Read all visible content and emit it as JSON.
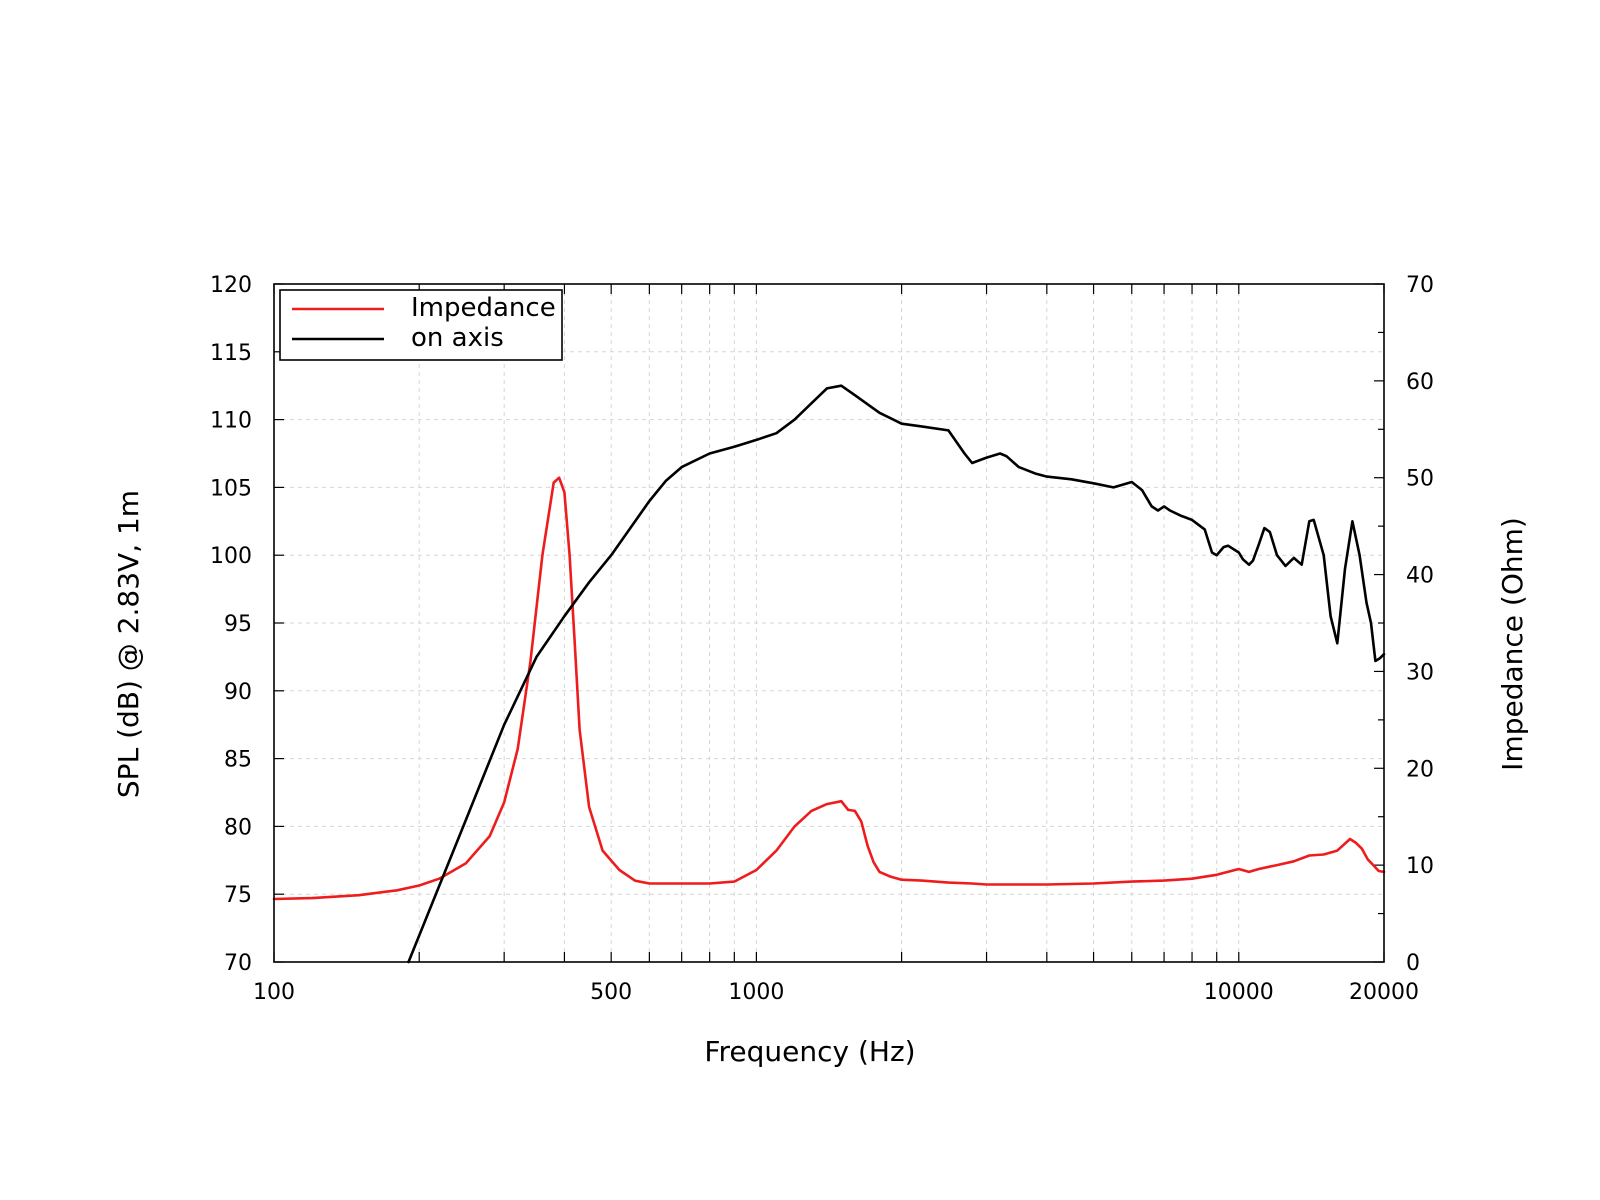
{
  "chart_data": {
    "type": "line",
    "title": "",
    "xlabel": "Frequency (Hz)",
    "ylabel": "SPL (dB) @ 2.83V, 1m",
    "y2label": "Impedance (Ohm)",
    "xscale": "log",
    "xlim": [
      100,
      20000
    ],
    "ylim": [
      70,
      120
    ],
    "y2lim": [
      0,
      70
    ],
    "grid": true,
    "legend_position": "top-left",
    "x_tick_labels": [
      {
        "value": 100,
        "label": "100"
      },
      {
        "value": 500,
        "label": "500"
      },
      {
        "value": 1000,
        "label": "1000"
      },
      {
        "value": 10000,
        "label": "10000"
      },
      {
        "value": 20000,
        "label": "20000"
      }
    ],
    "x_minor_ticks": [
      200,
      300,
      400,
      600,
      700,
      800,
      900,
      2000,
      3000,
      4000,
      5000,
      6000,
      7000,
      8000,
      9000
    ],
    "y_ticks": [
      70,
      75,
      80,
      85,
      90,
      95,
      100,
      105,
      110,
      115,
      120
    ],
    "y2_ticks": [
      0,
      10,
      20,
      30,
      40,
      50,
      60,
      70
    ],
    "series": [
      {
        "name": "Impedance",
        "axis": "right",
        "color": "#ee1c1c",
        "x": [
          100,
          120,
          150,
          180,
          200,
          220,
          250,
          280,
          300,
          320,
          340,
          360,
          380,
          390,
          400,
          410,
          420,
          430,
          450,
          480,
          520,
          560,
          600,
          650,
          700,
          800,
          900,
          1000,
          1100,
          1200,
          1300,
          1400,
          1500,
          1550,
          1600,
          1650,
          1700,
          1750,
          1800,
          1900,
          2000,
          2200,
          2500,
          2800,
          3000,
          3500,
          4000,
          5000,
          6000,
          7000,
          8000,
          9000,
          10000,
          10500,
          11000,
          12000,
          13000,
          14000,
          15000,
          16000,
          17000,
          17500,
          18000,
          18500,
          19000,
          19500,
          20000
        ],
        "values": [
          6.5,
          6.6,
          6.9,
          7.4,
          7.9,
          8.6,
          10.2,
          13.0,
          16.5,
          22.0,
          31.0,
          42.0,
          49.5,
          50.0,
          48.5,
          42.0,
          33.0,
          24.0,
          16.0,
          11.5,
          9.5,
          8.4,
          8.1,
          8.1,
          8.1,
          8.1,
          8.3,
          9.5,
          11.5,
          14.0,
          15.6,
          16.3,
          16.6,
          15.7,
          15.6,
          14.5,
          12.0,
          10.3,
          9.3,
          8.8,
          8.5,
          8.4,
          8.2,
          8.1,
          8.0,
          8.0,
          8.0,
          8.1,
          8.3,
          8.4,
          8.6,
          9.0,
          9.6,
          9.3,
          9.6,
          10.0,
          10.4,
          11.0,
          11.1,
          11.5,
          12.7,
          12.3,
          11.7,
          10.6,
          10.0,
          9.4,
          9.3
        ]
      },
      {
        "name": "on axis",
        "axis": "left",
        "color": "#000000",
        "x": [
          190,
          250,
          300,
          350,
          400,
          450,
          500,
          600,
          650,
          700,
          800,
          900,
          1000,
          1100,
          1200,
          1300,
          1400,
          1500,
          1600,
          1800,
          2000,
          2200,
          2500,
          2700,
          2800,
          3000,
          3200,
          3300,
          3500,
          3800,
          4000,
          4500,
          5000,
          5500,
          6000,
          6300,
          6600,
          6800,
          7000,
          7200,
          7600,
          8000,
          8500,
          8800,
          9000,
          9300,
          9500,
          10000,
          10200,
          10500,
          10700,
          11000,
          11300,
          11600,
          12000,
          12500,
          13000,
          13500,
          14000,
          14300,
          15000,
          15500,
          16000,
          16600,
          17200,
          17800,
          18400,
          18800,
          19200,
          19600,
          20000
        ],
        "values": [
          70.0,
          80.5,
          87.5,
          92.5,
          95.5,
          98.0,
          100.0,
          104.0,
          105.5,
          106.5,
          107.5,
          108.0,
          108.5,
          109.0,
          110.0,
          111.2,
          112.3,
          112.5,
          111.8,
          110.5,
          109.7,
          109.5,
          109.2,
          107.5,
          106.8,
          107.2,
          107.5,
          107.3,
          106.5,
          106.0,
          105.8,
          105.6,
          105.3,
          105.0,
          105.4,
          104.8,
          103.6,
          103.3,
          103.6,
          103.3,
          102.9,
          102.6,
          101.9,
          100.2,
          100.0,
          100.6,
          100.7,
          100.2,
          99.7,
          99.3,
          99.6,
          100.8,
          102.0,
          101.7,
          100.0,
          99.2,
          99.8,
          99.3,
          102.5,
          102.6,
          100.0,
          95.5,
          93.5,
          99.0,
          102.5,
          100.0,
          96.5,
          95.0,
          92.2,
          92.4,
          92.7
        ]
      }
    ]
  }
}
